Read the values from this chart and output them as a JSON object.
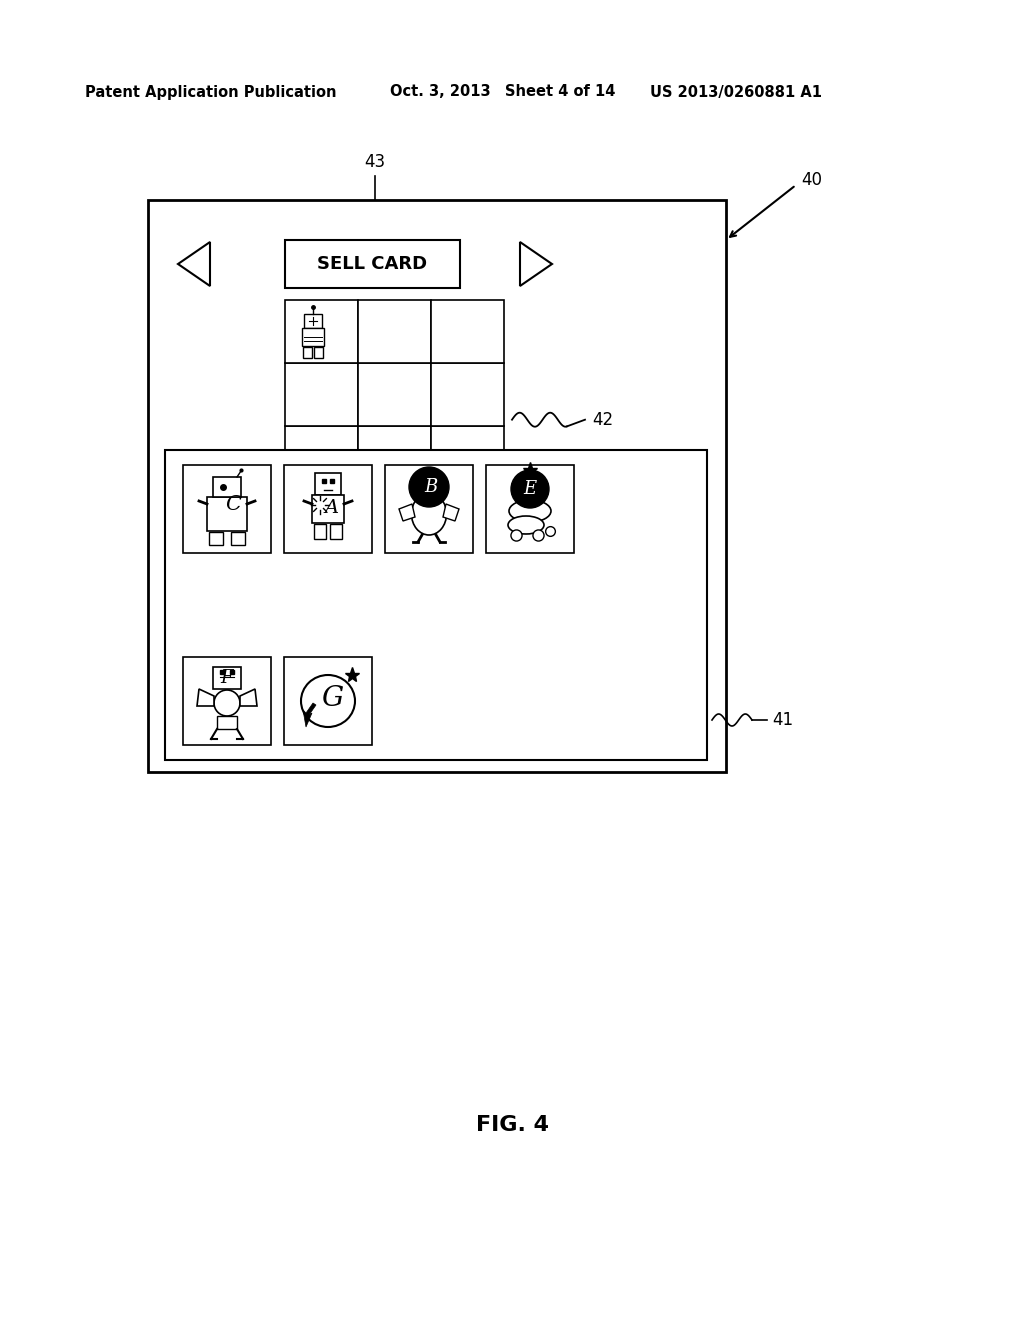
{
  "bg_color": "#ffffff",
  "header_text1": "Patent Application Publication",
  "header_text2": "Oct. 3, 2013",
  "header_text3": "Sheet 4 of 14",
  "header_text4": "US 2013/0260881 A1",
  "fig_label": "FIG. 4",
  "label_40": "40",
  "label_41": "41",
  "label_42": "42",
  "label_43": "43",
  "sell_card_text": "SELL CARD"
}
